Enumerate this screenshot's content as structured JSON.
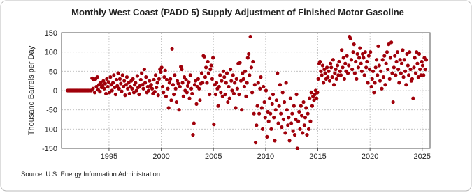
{
  "chart_data": {
    "type": "scatter",
    "title": "Monthly West Coast (PADD 5) Supply Adjustment of Finished Motor Gasoline",
    "y_label": "Thousand Barrels per Day",
    "source": "Source: U.S. Energy Information Administration",
    "xlim": [
      1990.45,
      2025.75
    ],
    "ylim": [
      -150,
      150
    ],
    "xticks": [
      1995,
      2000,
      2005,
      2010,
      2015,
      2020,
      2025
    ],
    "yticks": [
      -150,
      -100,
      -50,
      0,
      50,
      100,
      150
    ],
    "grid": true,
    "series": [
      {
        "name": "Supply Adjustment",
        "color": "#a0000a",
        "x": [
          1991.04,
          1991.13,
          1991.21,
          1991.29,
          1991.38,
          1991.46,
          1991.54,
          1991.63,
          1991.71,
          1991.79,
          1991.88,
          1991.96,
          1992.04,
          1992.13,
          1992.21,
          1992.29,
          1992.38,
          1992.46,
          1992.54,
          1992.63,
          1992.71,
          1992.79,
          1992.88,
          1992.96,
          1993.04,
          1993.13,
          1993.21,
          1993.29,
          1993.38,
          1993.46,
          1993.54,
          1993.63,
          1993.71,
          1993.79,
          1993.88,
          1993.96,
          1994.04,
          1994.13,
          1994.21,
          1994.29,
          1994.38,
          1994.46,
          1994.54,
          1994.63,
          1994.71,
          1994.79,
          1994.88,
          1994.96,
          1995.04,
          1995.13,
          1995.21,
          1995.29,
          1995.38,
          1995.46,
          1995.54,
          1995.63,
          1995.71,
          1995.79,
          1995.88,
          1995.96,
          1996.04,
          1996.13,
          1996.21,
          1996.29,
          1996.38,
          1996.46,
          1996.54,
          1996.63,
          1996.71,
          1996.79,
          1996.88,
          1996.96,
          1997.04,
          1997.13,
          1997.21,
          1997.29,
          1997.38,
          1997.46,
          1997.54,
          1997.63,
          1997.71,
          1997.79,
          1997.88,
          1997.96,
          1998.04,
          1998.13,
          1998.21,
          1998.29,
          1998.38,
          1998.46,
          1998.54,
          1998.63,
          1998.71,
          1998.79,
          1998.88,
          1998.96,
          1999.04,
          1999.13,
          1999.21,
          1999.29,
          1999.38,
          1999.46,
          1999.54,
          1999.63,
          1999.71,
          1999.79,
          1999.88,
          1999.96,
          2000.04,
          2000.13,
          2000.21,
          2000.29,
          2000.38,
          2000.46,
          2000.54,
          2000.63,
          2000.71,
          2000.79,
          2000.88,
          2000.96,
          2001.04,
          2001.13,
          2001.21,
          2001.29,
          2001.38,
          2001.46,
          2001.54,
          2001.63,
          2001.71,
          2001.79,
          2001.88,
          2001.96,
          2002.04,
          2002.13,
          2002.21,
          2002.29,
          2002.38,
          2002.46,
          2002.54,
          2002.63,
          2002.71,
          2002.79,
          2002.88,
          2002.96,
          2003.04,
          2003.13,
          2003.21,
          2003.29,
          2003.38,
          2003.46,
          2003.54,
          2003.63,
          2003.71,
          2003.79,
          2003.88,
          2003.96,
          2004.04,
          2004.13,
          2004.21,
          2004.29,
          2004.38,
          2004.46,
          2004.54,
          2004.63,
          2004.71,
          2004.79,
          2004.88,
          2004.96,
          2005.04,
          2005.13,
          2005.21,
          2005.29,
          2005.38,
          2005.46,
          2005.54,
          2005.63,
          2005.71,
          2005.79,
          2005.88,
          2005.96,
          2006.04,
          2006.13,
          2006.21,
          2006.29,
          2006.38,
          2006.46,
          2006.54,
          2006.63,
          2006.71,
          2006.79,
          2006.88,
          2006.96,
          2007.04,
          2007.13,
          2007.21,
          2007.29,
          2007.38,
          2007.46,
          2007.54,
          2007.63,
          2007.71,
          2007.79,
          2007.88,
          2007.96,
          2008.04,
          2008.13,
          2008.21,
          2008.29,
          2008.38,
          2008.46,
          2008.54,
          2008.63,
          2008.71,
          2008.79,
          2008.88,
          2008.96,
          2009.04,
          2009.13,
          2009.21,
          2009.29,
          2009.38,
          2009.46,
          2009.54,
          2009.63,
          2009.71,
          2009.79,
          2009.88,
          2009.96,
          2010.04,
          2010.13,
          2010.21,
          2010.29,
          2010.38,
          2010.46,
          2010.54,
          2010.63,
          2010.71,
          2010.79,
          2010.88,
          2010.96,
          2011.04,
          2011.13,
          2011.21,
          2011.29,
          2011.38,
          2011.46,
          2011.54,
          2011.63,
          2011.71,
          2011.79,
          2011.88,
          2011.96,
          2012.04,
          2012.13,
          2012.21,
          2012.29,
          2012.38,
          2012.46,
          2012.54,
          2012.63,
          2012.71,
          2012.79,
          2012.88,
          2012.96,
          2013.04,
          2013.13,
          2013.21,
          2013.29,
          2013.38,
          2013.46,
          2013.54,
          2013.63,
          2013.71,
          2013.79,
          2013.88,
          2013.96,
          2014.04,
          2014.13,
          2014.21,
          2014.29,
          2014.38,
          2014.46,
          2014.54,
          2014.63,
          2014.71,
          2014.79,
          2014.88,
          2014.96,
          2015.04,
          2015.13,
          2015.21,
          2015.29,
          2015.38,
          2015.46,
          2015.54,
          2015.63,
          2015.71,
          2015.79,
          2015.88,
          2015.96,
          2016.04,
          2016.13,
          2016.21,
          2016.29,
          2016.38,
          2016.46,
          2016.54,
          2016.63,
          2016.71,
          2016.79,
          2016.88,
          2016.96,
          2017.04,
          2017.13,
          2017.21,
          2017.29,
          2017.38,
          2017.46,
          2017.54,
          2017.63,
          2017.71,
          2017.79,
          2017.88,
          2017.96,
          2018.04,
          2018.13,
          2018.21,
          2018.29,
          2018.38,
          2018.46,
          2018.54,
          2018.63,
          2018.71,
          2018.79,
          2018.88,
          2018.96,
          2019.04,
          2019.13,
          2019.21,
          2019.29,
          2019.38,
          2019.46,
          2019.54,
          2019.63,
          2019.71,
          2019.79,
          2019.88,
          2019.96,
          2020.04,
          2020.13,
          2020.21,
          2020.29,
          2020.38,
          2020.46,
          2020.54,
          2020.63,
          2020.71,
          2020.79,
          2020.88,
          2020.96,
          2021.04,
          2021.13,
          2021.21,
          2021.29,
          2021.38,
          2021.46,
          2021.54,
          2021.63,
          2021.71,
          2021.79,
          2021.88,
          2021.96,
          2022.04,
          2022.13,
          2022.21,
          2022.29,
          2022.38,
          2022.46,
          2022.54,
          2022.63,
          2022.71,
          2022.79,
          2022.88,
          2022.96,
          2023.04,
          2023.13,
          2023.21,
          2023.29,
          2023.38,
          2023.46,
          2023.54,
          2023.63,
          2023.71,
          2023.79,
          2023.88,
          2023.96,
          2024.04,
          2024.13,
          2024.21,
          2024.29,
          2024.38,
          2024.46,
          2024.54,
          2024.63,
          2024.71,
          2024.79,
          2024.88,
          2024.96,
          2025.04,
          2025.13,
          2025.21,
          2025.29,
          2025.38
        ],
        "values": [
          0,
          0,
          0,
          0,
          0,
          0,
          0,
          0,
          0,
          0,
          0,
          0,
          0,
          0,
          0,
          0,
          0,
          0,
          0,
          0,
          0,
          0,
          0,
          0,
          0,
          0,
          0,
          0,
          32,
          5,
          28,
          -5,
          30,
          10,
          35,
          2,
          15,
          -3,
          20,
          8,
          12,
          25,
          5,
          18,
          -8,
          30,
          10,
          22,
          -5,
          35,
          15,
          0,
          20,
          40,
          8,
          -10,
          28,
          12,
          45,
          5,
          30,
          18,
          -2,
          40,
          10,
          25,
          -12,
          15,
          35,
          5,
          20,
          -8,
          10,
          25,
          5,
          30,
          -5,
          15,
          20,
          0,
          38,
          8,
          -10,
          12,
          28,
          45,
          15,
          5,
          55,
          20,
          35,
          -5,
          10,
          0,
          25,
          12,
          15,
          5,
          -8,
          28,
          -3,
          40,
          8,
          20,
          -12,
          30,
          55,
          48,
          60,
          10,
          -5,
          35,
          52,
          -15,
          28,
          5,
          -45,
          20,
          30,
          -25,
          108,
          15,
          -10,
          40,
          5,
          -30,
          25,
          18,
          -50,
          10,
          62,
          55,
          20,
          -15,
          35,
          0,
          28,
          -5,
          12,
          22,
          -20,
          40,
          5,
          -8,
          -115,
          -85,
          15,
          25,
          -35,
          10,
          30,
          5,
          -25,
          18,
          45,
          20,
          90,
          88,
          35,
          60,
          20,
          75,
          45,
          -10,
          55,
          65,
          30,
          85,
          -88,
          15,
          -10,
          20,
          5,
          -40,
          10,
          40,
          -5,
          25,
          -15,
          50,
          35,
          -10,
          20,
          45,
          -30,
          10,
          -20,
          55,
          25,
          0,
          40,
          -8,
          20,
          -45,
          30,
          5,
          70,
          -10,
          72,
          25,
          -50,
          45,
          30,
          10,
          50,
          -15,
          20,
          85,
          95,
          40,
          140,
          60,
          -5,
          75,
          -60,
          15,
          -135,
          -90,
          -40,
          20,
          -60,
          5,
          35,
          -45,
          -100,
          10,
          -30,
          -70,
          0,
          -120,
          -55,
          -80,
          -20,
          -60,
          -100,
          -35,
          -10,
          -70,
          -130,
          -50,
          -25,
          45,
          -85,
          -40,
          15,
          -60,
          -95,
          -5,
          -75,
          -30,
          -110,
          20,
          -50,
          -90,
          -70,
          -130,
          -20,
          -85,
          -60,
          -105,
          -40,
          -115,
          -75,
          -10,
          -150,
          -80,
          -55,
          -100,
          -40,
          -65,
          -110,
          -30,
          -90,
          -70,
          -45,
          -115,
          -60,
          -100,
          -20,
          -80,
          -5,
          -40,
          -15,
          -25,
          -10,
          0,
          -20,
          -5,
          30,
          70,
          75,
          50,
          40,
          65,
          20,
          55,
          45,
          30,
          60,
          35,
          50,
          25,
          70,
          60,
          35,
          80,
          15,
          45,
          55,
          30,
          65,
          40,
          75,
          50,
          40,
          105,
          60,
          85,
          30,
          70,
          50,
          90,
          45,
          65,
          140,
          135,
          80,
          55,
          100,
          120,
          45,
          75,
          30,
          95,
          60,
          85,
          110,
          70,
          50,
          95,
          85,
          40,
          100,
          60,
          75,
          20,
          90,
          55,
          100,
          10,
          30,
          50,
          -5,
          20,
          60,
          80,
          40,
          115,
          65,
          25,
          50,
          5,
          80,
          35,
          90,
          15,
          70,
          100,
          55,
          120,
          30,
          85,
          125,
          45,
          -30,
          60,
          90,
          40,
          75,
          100,
          55,
          20,
          80,
          45,
          70,
          105,
          35,
          80,
          50,
          15,
          95,
          65,
          40,
          100,
          55,
          25,
          30,
          -20,
          60,
          85,
          45,
          100,
          70,
          35,
          95,
          55,
          40,
          75,
          65,
          40,
          85,
          55,
          80
        ]
      }
    ]
  }
}
